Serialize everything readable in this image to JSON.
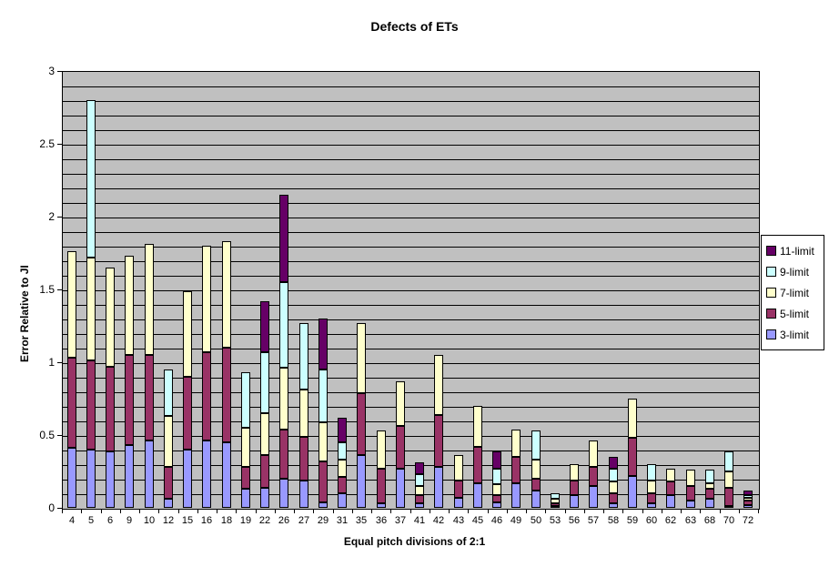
{
  "title": "Defects of ETs",
  "chart_data": {
    "type": "bar",
    "stacked": true,
    "title": "Defects of ETs",
    "xlabel": "Equal pitch divisions of 2:1",
    "ylabel": "Error Relative to JI",
    "ylim": [
      0,
      3
    ],
    "ytick_step": 0.5,
    "gridline_step": 0.1,
    "grid": true,
    "plot_bg": "#C0C0C0",
    "gridline_color": "#000000",
    "legend_position": "right",
    "yticks": [
      "0",
      "0.5",
      "1",
      "1.5",
      "2",
      "2.5",
      "3"
    ],
    "categories": [
      "4",
      "5",
      "6",
      "9",
      "10",
      "12",
      "15",
      "16",
      "18",
      "19",
      "22",
      "26",
      "27",
      "29",
      "31",
      "35",
      "36",
      "37",
      "41",
      "42",
      "43",
      "45",
      "46",
      "49",
      "50",
      "53",
      "56",
      "57",
      "58",
      "59",
      "60",
      "62",
      "63",
      "68",
      "70",
      "72"
    ],
    "series": [
      {
        "name": "3-limit",
        "color": "#9999FF",
        "values": [
          0.41,
          0.4,
          0.39,
          0.43,
          0.46,
          0.06,
          0.4,
          0.46,
          0.45,
          0.13,
          0.14,
          0.2,
          0.19,
          0.04,
          0.1,
          0.36,
          0.03,
          0.27,
          0.03,
          0.28,
          0.07,
          0.17,
          0.04,
          0.17,
          0.12,
          0.01,
          0.09,
          0.15,
          0.03,
          0.22,
          0.03,
          0.09,
          0.05,
          0.06,
          0.01,
          0.02
        ]
      },
      {
        "name": "5-limit",
        "color": "#993366",
        "values": [
          0.62,
          0.61,
          0.58,
          0.62,
          0.59,
          0.22,
          0.5,
          0.61,
          0.65,
          0.15,
          0.22,
          0.34,
          0.3,
          0.28,
          0.11,
          0.43,
          0.24,
          0.29,
          0.06,
          0.36,
          0.12,
          0.25,
          0.05,
          0.18,
          0.08,
          0.02,
          0.1,
          0.13,
          0.07,
          0.26,
          0.07,
          0.09,
          0.1,
          0.07,
          0.13,
          0.03
        ]
      },
      {
        "name": "7-limit",
        "color": "#FFFFCC",
        "values": [
          0.73,
          0.71,
          0.68,
          0.68,
          0.76,
          0.35,
          0.59,
          0.73,
          0.73,
          0.27,
          0.29,
          0.42,
          0.32,
          0.27,
          0.12,
          0.48,
          0.26,
          0.31,
          0.06,
          0.41,
          0.17,
          0.28,
          0.07,
          0.19,
          0.13,
          0.03,
          0.11,
          0.18,
          0.08,
          0.27,
          0.09,
          0.09,
          0.11,
          0.04,
          0.11,
          0.02
        ]
      },
      {
        "name": "9-limit",
        "color": "#CCFFFF",
        "values": [
          0,
          1.08,
          0,
          0,
          0,
          0.32,
          0,
          0,
          0,
          0.38,
          0.42,
          0.59,
          0.46,
          0.36,
          0.12,
          0,
          0,
          0,
          0.08,
          0,
          0,
          0,
          0.11,
          0,
          0.2,
          0.04,
          0,
          0,
          0.09,
          0,
          0.11,
          0,
          0,
          0.09,
          0.14,
          0.02
        ]
      },
      {
        "name": "11-limit",
        "color": "#660066",
        "values": [
          0,
          0,
          0,
          0,
          0,
          0,
          0,
          0,
          0,
          0,
          0.35,
          0.6,
          0,
          0.35,
          0.17,
          0,
          0,
          0,
          0.08,
          0,
          0,
          0,
          0.12,
          0,
          0,
          0,
          0,
          0,
          0.08,
          0,
          0,
          0,
          0,
          0,
          0,
          0.03
        ]
      }
    ],
    "legend_order": [
      "11-limit",
      "9-limit",
      "7-limit",
      "5-limit",
      "3-limit"
    ]
  }
}
